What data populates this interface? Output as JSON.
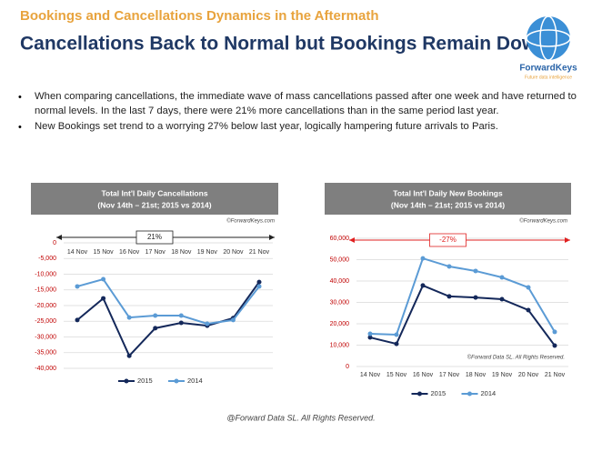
{
  "header": {
    "kicker": "Bookings and Cancellations Dynamics in the Aftermath",
    "title": "Cancellations Back to Normal but Bookings Remain Down"
  },
  "logo": {
    "name": "ForwardKeys",
    "tagline": "Future data intelligence"
  },
  "bullets": [
    "When comparing cancellations, the immediate wave of mass cancellations passed after one week and have returned to normal levels. In the last 7 days, there were 21% more cancellations than in the same period last year.",
    "New Bookings set trend to a worrying 27% below last year, logically hampering future arrivals to Paris."
  ],
  "footer": "@Forward Data SL. All Rights Reserved.",
  "chart_data": [
    {
      "type": "line",
      "title": "Total Int'l Daily Cancellations",
      "subtitle": "(Nov 14th – 21st; 2015 vs 2014)",
      "source": "©ForwardKeys.com",
      "annotation": "21%",
      "annotation_color": "#222222",
      "categories": [
        "14 Nov",
        "15 Nov",
        "16 Nov",
        "17 Nov",
        "18 Nov",
        "19 Nov",
        "20 Nov",
        "21 Nov"
      ],
      "series": [
        {
          "name": "2015",
          "color": "#14285a",
          "values": [
            -24600,
            -17700,
            -36000,
            -27200,
            -25500,
            -26400,
            -24000,
            -12500
          ]
        },
        {
          "name": "2014",
          "color": "#5b9bd5",
          "values": [
            -13900,
            -11600,
            -23800,
            -23200,
            -23200,
            -25800,
            -24600,
            -13900
          ]
        }
      ],
      "ylim": [
        -40000,
        0
      ],
      "yticks": [
        0,
        {
          "value": -5000,
          "label": "-5,000"
        },
        {
          "value": -10000,
          "label": "-10,000"
        },
        {
          "value": -15000,
          "label": "-15,000"
        },
        {
          "value": -20000,
          "label": "-20,000"
        },
        {
          "value": -25000,
          "label": "-25,000"
        },
        {
          "value": -30000,
          "label": "-30,000"
        },
        {
          "value": -35000,
          "label": "-35,000"
        },
        {
          "value": -40000,
          "label": "-40,000"
        }
      ],
      "grid": true
    },
    {
      "type": "line",
      "title": "Total Int'l Daily New Bookings",
      "subtitle": "(Nov 14th – 21st; 2015 vs 2014)",
      "source": "©ForwardKeys.com",
      "annotation": "-27%",
      "annotation_color": "#e02020",
      "note": "©Forward Data SL. All Rights Reserved.",
      "categories": [
        "14 Nov",
        "15 Nov",
        "16 Nov",
        "17 Nov",
        "18 Nov",
        "19 Nov",
        "20 Nov",
        "21 Nov"
      ],
      "series": [
        {
          "name": "2015",
          "color": "#14285a",
          "values": [
            13600,
            10600,
            37900,
            32800,
            32300,
            31500,
            26400,
            9800
          ]
        },
        {
          "name": "2014",
          "color": "#5b9bd5",
          "values": [
            15300,
            14900,
            50600,
            46800,
            44700,
            41700,
            37000,
            16200
          ]
        }
      ],
      "ylim": [
        0,
        60000
      ],
      "yticks": [
        0,
        {
          "value": 10000,
          "label": "10,000"
        },
        {
          "value": 20000,
          "label": "20,000"
        },
        {
          "value": 30000,
          "label": "30,000"
        },
        {
          "value": 40000,
          "label": "40,000"
        },
        {
          "value": 50000,
          "label": "50,000"
        },
        {
          "value": 60000,
          "label": "60,000"
        }
      ],
      "grid": true
    }
  ]
}
